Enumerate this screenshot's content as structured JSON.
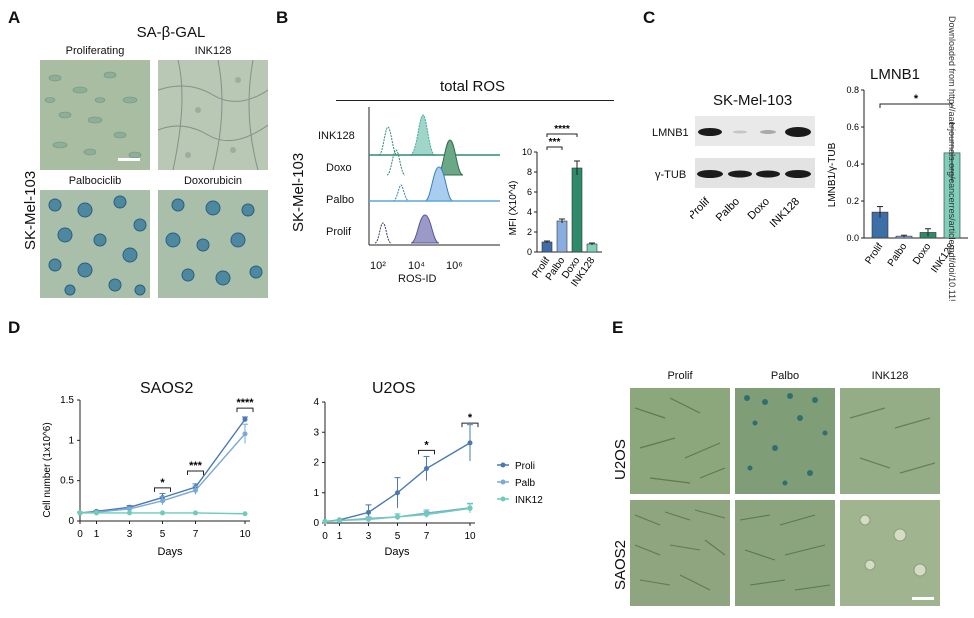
{
  "panels": {
    "A": "A",
    "B": "B",
    "C": "C",
    "D": "D",
    "E": "E"
  },
  "panelA": {
    "title": "SA-β-GAL",
    "side_label": "SK-Mel-103",
    "tiles": [
      "Proliferating",
      "INK128",
      "Palbociclib",
      "Doxorubicin"
    ],
    "colors": {
      "light": "#a9bfa3",
      "cells": "#6f9a8a",
      "blue": "#2f6e8e"
    }
  },
  "panelB": {
    "title": "total ROS",
    "side_label": "SK-Mel-103",
    "rows": [
      "INK128",
      "Doxo",
      "Palbo",
      "Prolif"
    ],
    "x_label": "ROS-ID",
    "x_ticks": [
      "10²",
      "10⁴",
      "10⁶"
    ],
    "bar_chart": {
      "ylabel": "MFI (X10^4)",
      "yticks": [
        "0",
        "2",
        "4",
        "6",
        "8",
        "10"
      ],
      "categories": [
        "Prolif",
        "Palbo",
        "Doxo",
        "INK128"
      ],
      "values": [
        1.0,
        3.1,
        8.4,
        0.8
      ],
      "errors": [
        0.1,
        0.2,
        0.7,
        0.1
      ],
      "colors": [
        "#3e6ea8",
        "#87aede",
        "#2e8a6a",
        "#7fcfba"
      ],
      "sig": [
        "***",
        "****"
      ]
    }
  },
  "panelC": {
    "blot_title": "SK-Mel-103",
    "blot_rows": [
      "LMNB1",
      "γ-TUB"
    ],
    "blot_lanes": [
      "Prolif",
      "Palbo",
      "Doxo",
      "INK128"
    ],
    "chart_title": "LMNB1",
    "ylabel": "LMNB1/γ-TUB",
    "yticks": [
      "0.0",
      "0.2",
      "0.4",
      "0.6",
      "0.8"
    ],
    "categories": [
      "Prolif",
      "Palbo",
      "Doxo",
      "INK128"
    ],
    "values": [
      0.14,
      0.01,
      0.03,
      0.46
    ],
    "errors": [
      0.03,
      0.005,
      0.02,
      0.16
    ],
    "colors": [
      "#3e6ea8",
      "#87aede",
      "#2e8a6a",
      "#7fcfba"
    ],
    "sig": "*"
  },
  "panelD": {
    "saos": {
      "title": "SAOS2",
      "ylabel": "Cell number (1x10^6)",
      "xlabel": "Days",
      "yticks": [
        "0",
        "0.5",
        "1",
        "1.5"
      ],
      "xticks": [
        "0",
        "1",
        "3",
        "5",
        "7",
        "10"
      ],
      "sig": [
        "*",
        "***",
        "****"
      ]
    },
    "u2os": {
      "title": "U2OS",
      "xlabel": "Days",
      "yticks": [
        "0",
        "1",
        "2",
        "3",
        "4"
      ],
      "xticks": [
        "0",
        "1",
        "3",
        "5",
        "7",
        "10"
      ],
      "sig": [
        "*",
        "*"
      ]
    },
    "legend": [
      "Proli",
      "Palb",
      "INK12"
    ],
    "colors": [
      "#4a78b0",
      "#7aaad8",
      "#6ccdbb"
    ]
  },
  "panelE": {
    "cols": [
      "Prolif",
      "Palbo",
      "INK128"
    ],
    "rows": [
      "U2OS",
      "SAOS2"
    ]
  },
  "watermark": "Downloaded from http://aacrjournals.org/cancerres/article-pdf/doi/10.11!",
  "chart_data": [
    {
      "type": "bar",
      "title": "",
      "ylabel": "MFI (X10^4)",
      "categories": [
        "Prolif",
        "Palbo",
        "Doxo",
        "INK128"
      ],
      "values": [
        1.0,
        3.1,
        8.4,
        0.8
      ],
      "ylim": [
        0,
        10
      ]
    },
    {
      "type": "bar",
      "title": "LMNB1",
      "ylabel": "LMNB1/γ-TUB",
      "categories": [
        "Prolif",
        "Palbo",
        "Doxo",
        "INK128"
      ],
      "values": [
        0.14,
        0.01,
        0.03,
        0.46
      ],
      "ylim": [
        0,
        0.8
      ]
    },
    {
      "type": "line",
      "title": "SAOS2",
      "xlabel": "Days",
      "ylabel": "Cell number (1x10^6)",
      "x": [
        0,
        1,
        3,
        5,
        7,
        10
      ],
      "ylim": [
        0,
        1.5
      ],
      "series": [
        {
          "name": "Proli",
          "values": [
            0.1,
            0.12,
            0.17,
            0.29,
            0.42,
            1.26
          ]
        },
        {
          "name": "Palb",
          "values": [
            0.1,
            0.11,
            0.15,
            0.25,
            0.38,
            1.08
          ]
        },
        {
          "name": "INK12",
          "values": [
            0.1,
            0.1,
            0.1,
            0.1,
            0.1,
            0.09
          ]
        }
      ]
    },
    {
      "type": "line",
      "title": "U2OS",
      "xlabel": "Days",
      "x": [
        0,
        1,
        3,
        5,
        7,
        10
      ],
      "ylim": [
        0,
        4
      ],
      "series": [
        {
          "name": "Proli",
          "values": [
            0.05,
            0.1,
            0.35,
            1.0,
            1.8,
            2.65
          ]
        },
        {
          "name": "Palb",
          "values": [
            0.05,
            0.08,
            0.15,
            0.2,
            0.33,
            0.5
          ]
        },
        {
          "name": "INK12",
          "values": [
            0.05,
            0.08,
            0.12,
            0.2,
            0.28,
            0.48
          ]
        }
      ]
    }
  ]
}
